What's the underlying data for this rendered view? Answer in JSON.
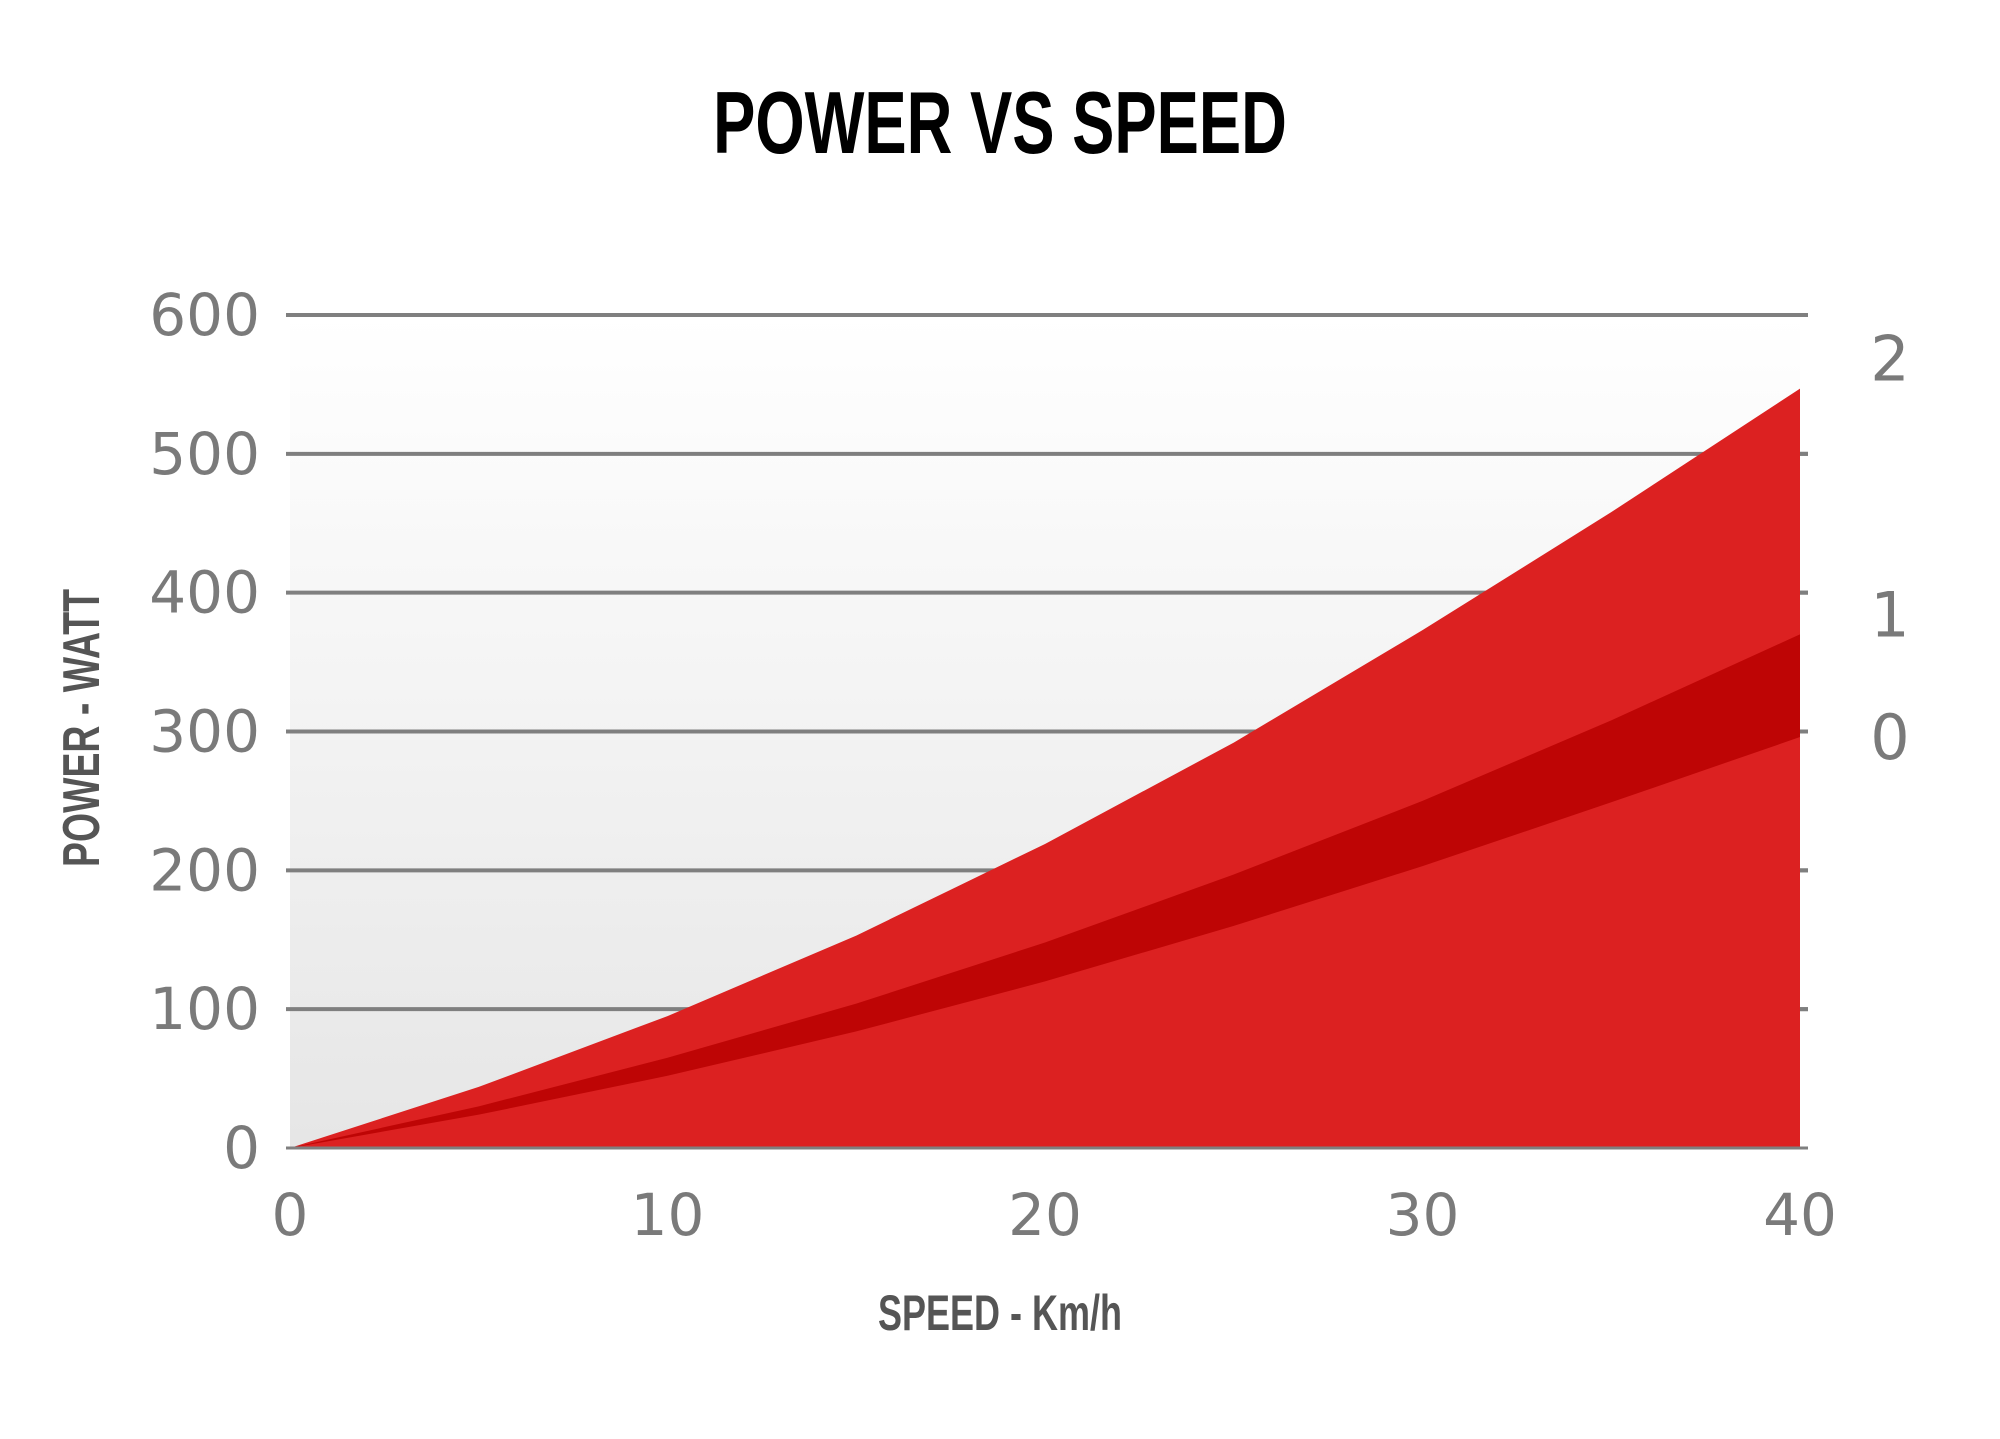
{
  "chart_data": {
    "type": "area",
    "title": "POWER VS SPEED",
    "xlabel": "SPEED - Km/h",
    "ylabel": "POWER - WATT",
    "xlim": [
      0,
      40
    ],
    "ylim": [
      0,
      600
    ],
    "x_ticks": [
      "0",
      "10",
      "20",
      "30",
      "40"
    ],
    "y_ticks": [
      "0",
      "100",
      "200",
      "300",
      "400",
      "500",
      "600"
    ],
    "grid": true,
    "x": [
      0,
      5,
      10,
      15,
      20,
      25,
      30,
      35,
      40
    ],
    "series": [
      {
        "name": "2",
        "color": "#dc2121",
        "values": [
          0,
          44,
          95,
          153,
          219,
          292,
          373,
          458,
          547
        ]
      },
      {
        "name": "1",
        "color": "#be0505",
        "values": [
          0,
          30,
          65,
          104,
          148,
          197,
          250,
          308,
          370
        ]
      },
      {
        "name": "0",
        "color": "#dc2121",
        "values": [
          0,
          24,
          52,
          84,
          120,
          160,
          203,
          249,
          296
        ]
      }
    ],
    "colors": {
      "background_top": "#ffffff",
      "background_bottom": "#e6e6e6",
      "gridline": "#7f7f7f",
      "tick_text": "#7a7a7a",
      "axis_title": "#555555",
      "title": "#000000"
    }
  }
}
